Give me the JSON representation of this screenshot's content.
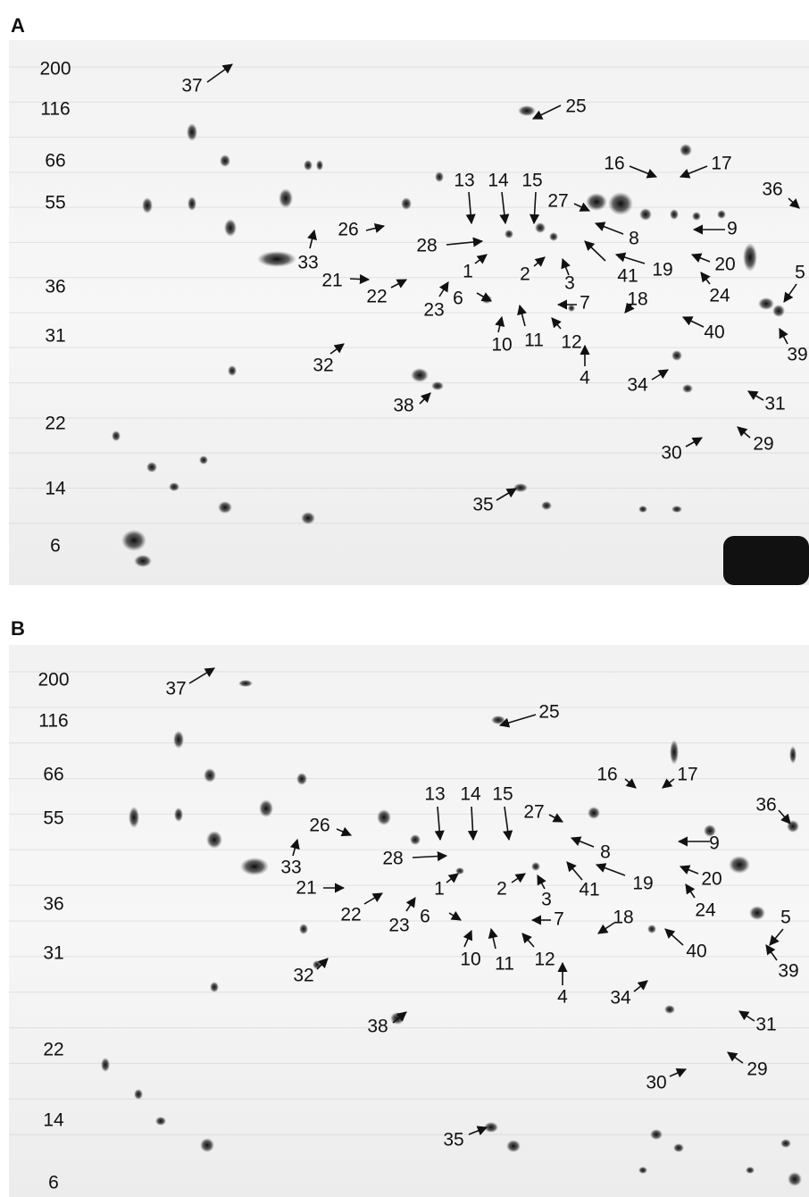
{
  "panels": [
    {
      "label": "A",
      "mw_markers": [
        "200",
        "116",
        "66",
        "55",
        "36",
        "31",
        "22",
        "14",
        "6"
      ],
      "spots": [
        "37",
        "25",
        "16",
        "17",
        "36",
        "13",
        "14",
        "15",
        "27",
        "26",
        "9",
        "8",
        "28",
        "33",
        "19",
        "41",
        "20",
        "21",
        "22",
        "1",
        "2",
        "3",
        "23",
        "6",
        "24",
        "18",
        "7",
        "10",
        "11",
        "12",
        "4",
        "32",
        "40",
        "5",
        "39",
        "34",
        "38",
        "31",
        "30",
        "29",
        "35"
      ]
    },
    {
      "label": "B",
      "mw_markers": [
        "200",
        "116",
        "66",
        "55",
        "36",
        "31",
        "22",
        "14",
        "6"
      ],
      "spots": [
        "37",
        "25",
        "16",
        "17",
        "36",
        "13",
        "14",
        "15",
        "27",
        "26",
        "9",
        "8",
        "28",
        "33",
        "19",
        "41",
        "20",
        "21",
        "22",
        "1",
        "2",
        "3",
        "23",
        "6",
        "24",
        "18",
        "7",
        "10",
        "11",
        "12",
        "4",
        "32",
        "40",
        "5",
        "39",
        "34",
        "38",
        "31",
        "30",
        "29",
        "35"
      ]
    }
  ]
}
